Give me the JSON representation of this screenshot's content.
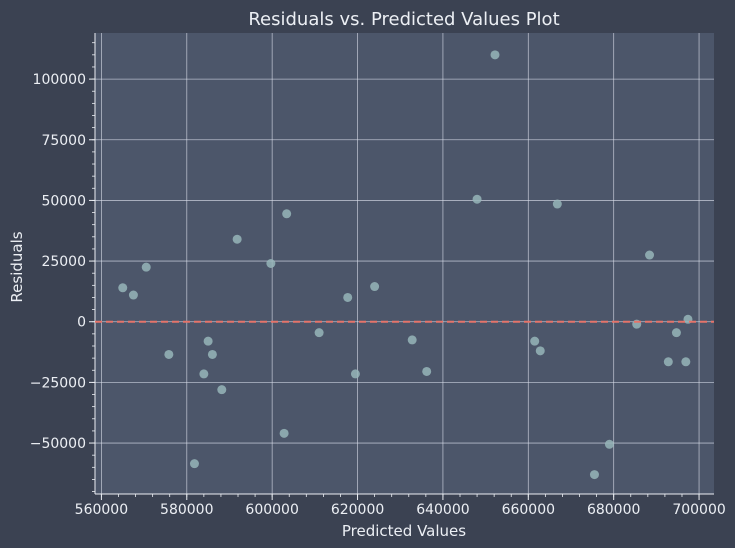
{
  "chart_data": {
    "type": "scatter",
    "title": "Residuals vs. Predicted Values Plot",
    "xlabel": "Predicted Values",
    "ylabel": "Residuals",
    "xlim": [
      558500,
      703500
    ],
    "ylim": [
      -71000,
      119000
    ],
    "x_ticks": [
      560000,
      580000,
      600000,
      620000,
      640000,
      660000,
      680000,
      700000
    ],
    "y_ticks": [
      -50000,
      -25000,
      0,
      25000,
      50000,
      75000,
      100000
    ],
    "x_tick_labels": [
      "560000",
      "580000",
      "600000",
      "620000",
      "640000",
      "660000",
      "680000",
      "700000"
    ],
    "y_tick_labels": [
      "−50000",
      "−25000",
      "0",
      "25000",
      "50000",
      "75000",
      "100000"
    ],
    "grid": true,
    "reference_line": {
      "y": 0,
      "style": "dashed",
      "color": "#e5746a"
    },
    "colors": {
      "background": "#3b4252",
      "plot_area": "#4c566a",
      "point": "#97b5b8",
      "grid": "#d8dee9",
      "text": "#eceff4"
    },
    "points": [
      {
        "x": 565000,
        "y": 14000
      },
      {
        "x": 567500,
        "y": 11000
      },
      {
        "x": 570500,
        "y": 22500
      },
      {
        "x": 575800,
        "y": -13500
      },
      {
        "x": 581800,
        "y": -58500
      },
      {
        "x": 584000,
        "y": -21500
      },
      {
        "x": 585000,
        "y": -8000
      },
      {
        "x": 586000,
        "y": -13500
      },
      {
        "x": 588200,
        "y": -28000
      },
      {
        "x": 591800,
        "y": 34000
      },
      {
        "x": 599700,
        "y": 24000
      },
      {
        "x": 602800,
        "y": -46000
      },
      {
        "x": 603400,
        "y": 44500
      },
      {
        "x": 611000,
        "y": -4500
      },
      {
        "x": 617700,
        "y": 10000
      },
      {
        "x": 619500,
        "y": -21500
      },
      {
        "x": 624000,
        "y": 14500
      },
      {
        "x": 632800,
        "y": -7500
      },
      {
        "x": 636200,
        "y": -20500
      },
      {
        "x": 648000,
        "y": 50500
      },
      {
        "x": 652200,
        "y": 110000
      },
      {
        "x": 661500,
        "y": -8000
      },
      {
        "x": 662800,
        "y": -12000
      },
      {
        "x": 666800,
        "y": 48500
      },
      {
        "x": 675500,
        "y": -63000
      },
      {
        "x": 679000,
        "y": -50500
      },
      {
        "x": 685400,
        "y": -1000
      },
      {
        "x": 688400,
        "y": 27500
      },
      {
        "x": 692800,
        "y": -16500
      },
      {
        "x": 694700,
        "y": -4500
      },
      {
        "x": 696900,
        "y": -16500
      },
      {
        "x": 697400,
        "y": 1000
      }
    ]
  }
}
